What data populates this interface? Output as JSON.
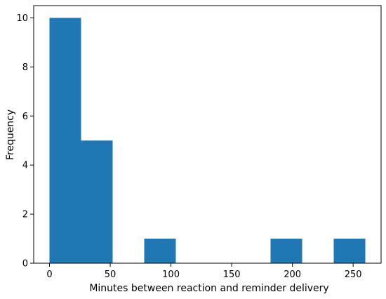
{
  "chart_data": {
    "type": "bar",
    "subtype": "histogram",
    "title": "",
    "xlabel": "Minutes between reaction and reminder delivery",
    "ylabel": "Frequency",
    "bins": [
      {
        "x0": 0,
        "x1": 26,
        "count": 10
      },
      {
        "x0": 26,
        "x1": 52,
        "count": 5
      },
      {
        "x0": 52,
        "x1": 78,
        "count": 0
      },
      {
        "x0": 78,
        "x1": 104,
        "count": 1
      },
      {
        "x0": 104,
        "x1": 130,
        "count": 0
      },
      {
        "x0": 130,
        "x1": 156,
        "count": 0
      },
      {
        "x0": 156,
        "x1": 182,
        "count": 0
      },
      {
        "x0": 182,
        "x1": 208,
        "count": 1
      },
      {
        "x0": 208,
        "x1": 234,
        "count": 0
      },
      {
        "x0": 234,
        "x1": 260,
        "count": 1
      }
    ],
    "xlim": [
      -13,
      273
    ],
    "ylim": [
      0,
      10.5
    ],
    "xticks": [
      0,
      50,
      100,
      150,
      200,
      250
    ],
    "yticks": [
      0,
      2,
      4,
      6,
      8,
      10
    ],
    "bar_color": "#1f77b4",
    "grid": false,
    "legend": "none"
  }
}
